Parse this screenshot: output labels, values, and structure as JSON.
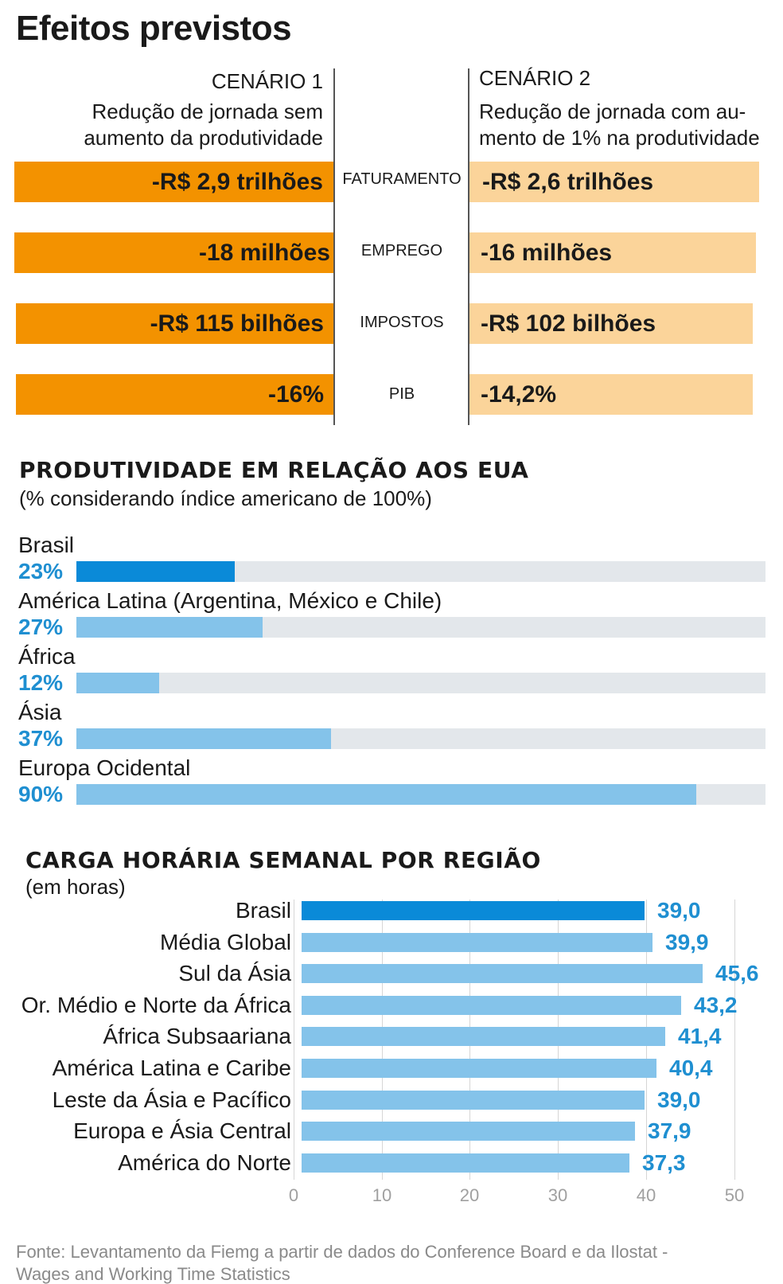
{
  "title": "Efeitos previstos",
  "scenarios": {
    "cenario1": {
      "label": "CENÁRIO 1",
      "desc_line1": "Redução de jornada sem",
      "desc_line2": "aumento da produtividade"
    },
    "cenario2": {
      "label": "CENÁRIO 2",
      "desc_line1": "Redução de jornada com au-",
      "desc_line2": "mento de 1% na produtividade"
    },
    "rows": [
      {
        "indicator": "FATURAMENTO",
        "cenario1": "-R$ 2,9 trilhões",
        "cenario2": "-R$ 2,6 trilhões"
      },
      {
        "indicator": "EMPREGO",
        "cenario1": "-18 milhões",
        "cenario2": "-16 milhões"
      },
      {
        "indicator": "IMPOSTOS",
        "cenario1": "-R$ 115 bilhões",
        "cenario2": "-R$ 102 bilhões"
      },
      {
        "indicator": "PIB",
        "cenario1": "-16%",
        "cenario2": "-14,2%"
      }
    ],
    "colors": {
      "cenario1": "#f39200",
      "cenario2": "#fbd49a"
    }
  },
  "chart_data": [
    {
      "type": "bar",
      "orientation": "horizontal",
      "title": "PRODUTIVIDADE EM RELAÇÃO AOS EUA",
      "subtitle": "(% considerando índice americano de 100%)",
      "categories": [
        "Brasil",
        "América Latina (Argentina, México e Chile)",
        "África",
        "Ásia",
        "Europa Ocidental"
      ],
      "values": [
        23,
        27,
        12,
        37,
        90
      ],
      "value_labels": [
        "23%",
        "27%",
        "12%",
        "37%",
        "90%"
      ],
      "xlim": [
        0,
        100
      ],
      "highlight": "Brasil",
      "colors": {
        "highlight": "#0a8ad8",
        "bar": "#84c3ea",
        "track": "#e3e7eb",
        "value_text": "#1f8fd1"
      }
    },
    {
      "type": "bar",
      "orientation": "horizontal",
      "title": "CARGA HORÁRIA SEMANAL POR REGIÃO",
      "subtitle": "(em horas)",
      "categories": [
        "Brasil",
        "Média Global",
        "Sul da Ásia",
        "Or. Médio e Norte da África",
        "África Subsaariana",
        "América Latina e Caribe",
        "Leste da Ásia e Pacífico",
        "Europa e Ásia Central",
        "América do Norte"
      ],
      "values": [
        39.0,
        39.9,
        45.6,
        43.2,
        41.4,
        40.4,
        39.0,
        37.9,
        37.3
      ],
      "value_labels": [
        "39,0",
        "39,9",
        "45,6",
        "43,2",
        "41,4",
        "40,4",
        "39,0",
        "37,9",
        "37,3"
      ],
      "xlim": [
        0,
        50
      ],
      "xticks": [
        "0",
        "10",
        "20",
        "30",
        "40",
        "50"
      ],
      "grid": true,
      "highlight": "Brasil",
      "colors": {
        "highlight": "#0a8ad8",
        "bar": "#84c3ea",
        "value_text": "#1f8fd1"
      }
    }
  ],
  "source": "Fonte: Levantamento da Fiemg a partir de dados do Conference Board e da Ilostat - Wages and Working Time Statistics"
}
